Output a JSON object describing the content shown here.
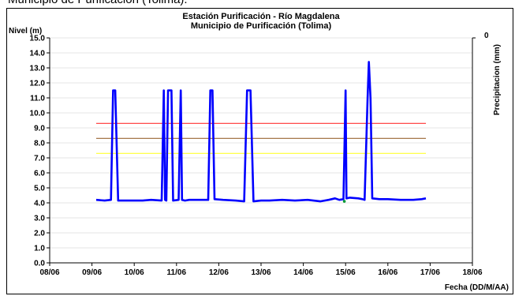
{
  "page_caption": "Municipio de Purificación (Tolima).",
  "chart_data": {
    "type": "line",
    "title": "Estación Purificación - Río Magdalena",
    "subtitle": "Municipio de Purificación (Tolima)",
    "ylabel": "Nivel (m)",
    "y2label": "Precipitacion (mm)",
    "y2_tick": "0",
    "xlabel": "Fecha (DD/M/AA)",
    "ylim": [
      0,
      15
    ],
    "yticks": [
      "0.0",
      "1.0",
      "2.0",
      "3.0",
      "4.0",
      "5.0",
      "6.0",
      "7.0",
      "8.0",
      "9.0",
      "10.0",
      "11.0",
      "12.0",
      "13.0",
      "14.0",
      "15.0"
    ],
    "xlim": [
      0,
      10
    ],
    "xticks": [
      "08/06",
      "09/06",
      "10/06",
      "11/06",
      "12/06",
      "13/06",
      "14/06",
      "15/06",
      "16/06",
      "17/06",
      "18/06"
    ],
    "grid": "horizontal",
    "colors": {
      "level": "#0000ff",
      "red_line": "#ff3333",
      "brown_line": "#996633",
      "yellow_line": "#ffff33",
      "marker": "#009933"
    },
    "thresholds": [
      {
        "value": 9.3,
        "color": "#ff3333"
      },
      {
        "value": 8.3,
        "color": "#996633"
      },
      {
        "value": 7.3,
        "color": "#ffff33"
      }
    ],
    "threshold_x": [
      1.1,
      8.9
    ],
    "series": [
      {
        "values_xy": [
          [
            1.1,
            4.2
          ],
          [
            1.3,
            4.15
          ],
          [
            1.45,
            4.2
          ],
          [
            1.5,
            11.5
          ],
          [
            1.55,
            11.5
          ],
          [
            1.62,
            4.15
          ],
          [
            1.9,
            4.15
          ],
          [
            2.2,
            4.15
          ],
          [
            2.4,
            4.2
          ],
          [
            2.65,
            4.15
          ],
          [
            2.7,
            11.5
          ],
          [
            2.73,
            4.2
          ],
          [
            2.76,
            4.15
          ],
          [
            2.8,
            11.5
          ],
          [
            2.88,
            11.5
          ],
          [
            2.92,
            4.15
          ],
          [
            3.05,
            4.2
          ],
          [
            3.1,
            11.5
          ],
          [
            3.13,
            4.2
          ],
          [
            3.2,
            4.15
          ],
          [
            3.3,
            4.2
          ],
          [
            3.5,
            4.2
          ],
          [
            3.75,
            4.2
          ],
          [
            3.8,
            11.5
          ],
          [
            3.85,
            11.5
          ],
          [
            3.9,
            4.25
          ],
          [
            4.1,
            4.2
          ],
          [
            4.4,
            4.15
          ],
          [
            4.6,
            4.1
          ],
          [
            4.67,
            11.5
          ],
          [
            4.75,
            11.5
          ],
          [
            4.82,
            4.1
          ],
          [
            5.0,
            4.15
          ],
          [
            5.2,
            4.15
          ],
          [
            5.5,
            4.2
          ],
          [
            5.8,
            4.15
          ],
          [
            6.1,
            4.2
          ],
          [
            6.4,
            4.1
          ],
          [
            6.6,
            4.2
          ],
          [
            6.75,
            4.3
          ],
          [
            6.85,
            4.2
          ],
          [
            6.95,
            4.25
          ],
          [
            7.0,
            11.5
          ],
          [
            7.02,
            4.3
          ],
          [
            7.1,
            4.35
          ],
          [
            7.3,
            4.3
          ],
          [
            7.4,
            4.25
          ],
          [
            7.45,
            4.2
          ],
          [
            7.52,
            11.0
          ],
          [
            7.55,
            13.4
          ],
          [
            7.59,
            11.0
          ],
          [
            7.63,
            4.3
          ],
          [
            7.8,
            4.25
          ],
          [
            8.0,
            4.25
          ],
          [
            8.3,
            4.2
          ],
          [
            8.6,
            4.2
          ],
          [
            8.8,
            4.25
          ],
          [
            8.9,
            4.3
          ]
        ]
      }
    ],
    "markers": [
      [
        6.97,
        4.1
      ]
    ]
  }
}
